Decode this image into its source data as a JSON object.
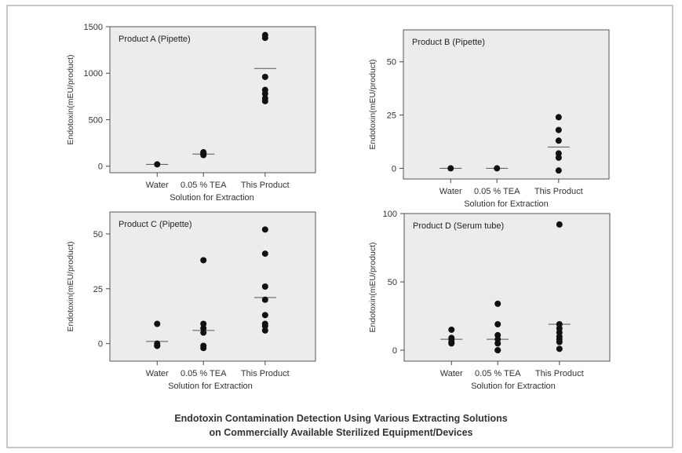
{
  "caption": {
    "line1": "Endotoxin Contamination Detection Using Various Extracting Solutions",
    "line2": "on Commercially Available Sterilized Equipment/Devices"
  },
  "chart_data": [
    {
      "type": "scatter",
      "title": "Product A (Pipette)",
      "xlabel": "Solution for Extraction",
      "ylabel": "Endotoxin(mEU/product)",
      "categories": [
        "Water",
        "0.05 % TEA",
        "This Product"
      ],
      "yticks": [
        0,
        500,
        1000,
        1500
      ],
      "ylim": [
        -70,
        1500
      ],
      "points": [
        [
          20
        ],
        [
          120,
          130,
          140,
          150
        ],
        [
          700,
          730,
          780,
          820,
          960,
          1380,
          1410
        ]
      ],
      "means": [
        20,
        130,
        1050
      ]
    },
    {
      "type": "scatter",
      "title": "Product B (Pipette)",
      "xlabel": "Solution for Extraction",
      "ylabel": "Endotoxin(mEU/product)",
      "categories": [
        "Water",
        "0.05 % TEA",
        "This Product"
      ],
      "yticks": [
        0,
        25,
        50
      ],
      "ylim": [
        -5,
        65
      ],
      "points": [
        [
          0
        ],
        [
          0
        ],
        [
          -1,
          5,
          7,
          13,
          18,
          24
        ]
      ],
      "means": [
        0,
        0,
        10
      ]
    },
    {
      "type": "scatter",
      "title": "Product C (Pipette)",
      "xlabel": "Solution for Extraction",
      "ylabel": "Endotoxin(mEU/product)",
      "categories": [
        "Water",
        "0.05 % TEA",
        "This Product"
      ],
      "yticks": [
        0,
        25,
        50
      ],
      "ylim": [
        -8,
        60
      ],
      "points": [
        [
          -1,
          -1,
          0,
          9
        ],
        [
          -2,
          -1,
          5,
          7,
          9,
          38
        ],
        [
          6,
          8,
          9,
          13,
          20,
          26,
          41,
          52
        ]
      ],
      "means": [
        1,
        6,
        21
      ]
    },
    {
      "type": "scatter",
      "title": "Product D (Serum tube)",
      "xlabel": "Solution for Extraction",
      "ylabel": "Endotoxin(mEU/product)",
      "categories": [
        "Water",
        "0.05 % TEA",
        "This Product"
      ],
      "yticks": [
        0,
        50,
        100
      ],
      "ylim": [
        -8,
        100
      ],
      "points": [
        [
          5,
          6,
          8,
          9,
          15
        ],
        [
          0,
          0,
          5,
          8,
          11,
          19,
          34
        ],
        [
          1,
          6,
          8,
          10,
          13,
          16,
          19,
          92
        ]
      ],
      "means": [
        8,
        8,
        19
      ]
    }
  ]
}
